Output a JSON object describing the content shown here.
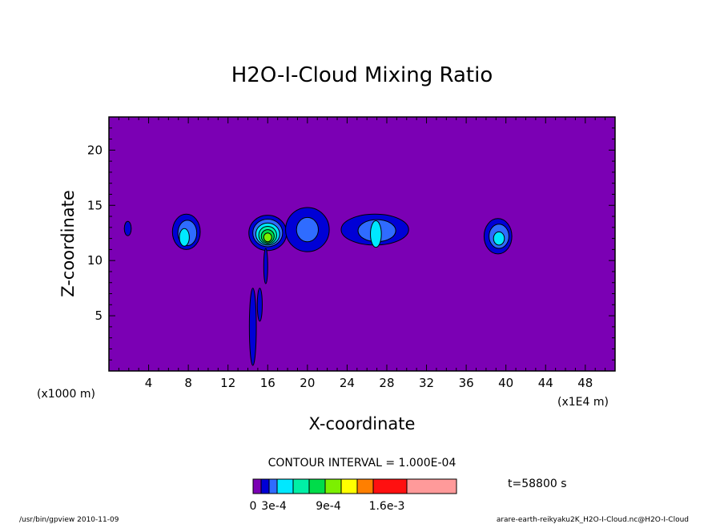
{
  "chart_data": {
    "type": "contour",
    "title": "H2O-I-Cloud Mixing Ratio",
    "xlabel": "X-coordinate",
    "ylabel": "Z-coordinate",
    "x_unit": "(x1000 m)",
    "x_unit_right": "(x1E4 m)",
    "xlim": [
      0,
      51
    ],
    "ylim": [
      0,
      23
    ],
    "xticks": [
      4,
      8,
      12,
      16,
      20,
      24,
      28,
      32,
      36,
      40,
      44,
      48
    ],
    "yticks": [
      5,
      10,
      15,
      20
    ],
    "contour_interval_text": "CONTOUR INTERVAL = 1.000E-04",
    "time_text": "t=58800 s",
    "background_color": "#7b00b4",
    "color_levels": [
      {
        "value": 0,
        "color": "#7b00b4"
      },
      {
        "value": 0.0001,
        "color": "#0000d6"
      },
      {
        "value": 0.0002,
        "color": "#2f6cff"
      },
      {
        "value": 0.0003,
        "color": "#00e8ff"
      },
      {
        "value": 0.0004,
        "color": "#00f0a6"
      },
      {
        "value": 0.0005,
        "color": "#00dc4a"
      },
      {
        "value": 0.0006,
        "color": "#7cf000"
      },
      {
        "value": 0.0007,
        "color": "#ffff00"
      },
      {
        "value": 0.0008,
        "color": "#ff7f00"
      },
      {
        "value": 0.0009,
        "color": "#ff1010"
      },
      {
        "value": 0.001,
        "color": "#ff9a9a"
      }
    ],
    "colorbar_labels": [
      "0",
      "3e-4",
      "9e-4",
      "1.6e-3"
    ],
    "cells": [
      {
        "x": 1.9,
        "z": 12.9,
        "rx": 0.35,
        "rz": 0.65,
        "level": 1
      },
      {
        "x": 7.8,
        "z": 12.6,
        "rx": 1.4,
        "rz": 1.6,
        "level": 1
      },
      {
        "x": 7.9,
        "z": 12.5,
        "rx": 0.95,
        "rz": 1.15,
        "level": 2
      },
      {
        "x": 7.6,
        "z": 12.1,
        "rx": 0.5,
        "rz": 0.8,
        "level": 3
      },
      {
        "x": 16.0,
        "z": 12.5,
        "rx": 1.9,
        "rz": 1.6,
        "level": 1
      },
      {
        "x": 16.0,
        "z": 12.5,
        "rx": 1.5,
        "rz": 1.25,
        "level": 2
      },
      {
        "x": 16.0,
        "z": 12.4,
        "rx": 1.2,
        "rz": 1.0,
        "level": 3
      },
      {
        "x": 16.0,
        "z": 12.3,
        "rx": 0.9,
        "rz": 0.8,
        "level": 4
      },
      {
        "x": 16.0,
        "z": 12.2,
        "rx": 0.65,
        "rz": 0.6,
        "level": 5
      },
      {
        "x": 16.0,
        "z": 12.1,
        "rx": 0.4,
        "rz": 0.4,
        "level": 6
      },
      {
        "x": 20.0,
        "z": 12.8,
        "rx": 2.2,
        "rz": 2.0,
        "level": 1
      },
      {
        "x": 20.0,
        "z": 12.8,
        "rx": 1.1,
        "rz": 1.1,
        "level": 2
      },
      {
        "x": 26.8,
        "z": 12.8,
        "rx": 3.4,
        "rz": 1.4,
        "level": 1
      },
      {
        "x": 27.0,
        "z": 12.7,
        "rx": 1.9,
        "rz": 1.0,
        "level": 2
      },
      {
        "x": 26.9,
        "z": 12.4,
        "rx": 0.55,
        "rz": 1.2,
        "level": 3
      },
      {
        "x": 39.2,
        "z": 12.2,
        "rx": 1.4,
        "rz": 1.6,
        "level": 1
      },
      {
        "x": 39.3,
        "z": 12.2,
        "rx": 1.0,
        "rz": 1.1,
        "level": 2
      },
      {
        "x": 39.3,
        "z": 12.0,
        "rx": 0.55,
        "rz": 0.6,
        "level": 3
      },
      {
        "x": 14.5,
        "z": 4.0,
        "rx": 0.35,
        "rz": 3.5,
        "level": 1
      },
      {
        "x": 15.2,
        "z": 6.0,
        "rx": 0.25,
        "rz": 1.5,
        "level": 1
      },
      {
        "x": 15.8,
        "z": 9.5,
        "rx": 0.2,
        "rz": 1.6,
        "level": 1
      }
    ]
  },
  "footer": {
    "left": "/usr/bin/gpview  2010-11-09",
    "right": "arare-earth-reikyaku2K_H2O-I-Cloud.nc@H2O-I-Cloud"
  }
}
